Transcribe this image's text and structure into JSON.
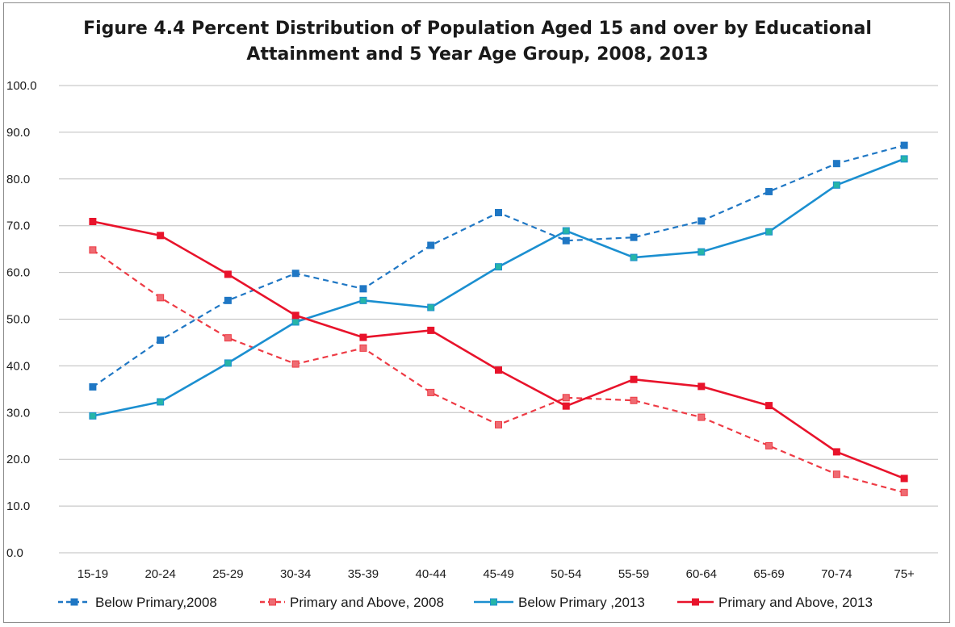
{
  "chart_data": {
    "type": "line",
    "title_line1": "Figure 4.4 Percent Distribution of Population Aged 15 and over by Educational",
    "title_line2": "Attainment and 5 Year Age Group, 2008, 2013",
    "xlabel": "",
    "ylabel": "",
    "ylim": [
      0,
      100
    ],
    "yticks": [
      "0.0",
      "10.0",
      "20.0",
      "30.0",
      "40.0",
      "50.0",
      "60.0",
      "70.0",
      "80.0",
      "90.0",
      "100.0"
    ],
    "categories": [
      "15-19",
      "20-24",
      "25-29",
      "30-34",
      "35-39",
      "40-44",
      "45-49",
      "50-54",
      "55-59",
      "60-64",
      "65-69",
      "70-74",
      "75+"
    ],
    "grid": true,
    "legend_position": "bottom",
    "series": [
      {
        "name": "Below Primary,2008",
        "color": "#1f77c4",
        "marker_color": "#1f77c4",
        "dash": true,
        "values": [
          35.5,
          45.5,
          54.0,
          59.8,
          56.5,
          65.8,
          72.8,
          66.8,
          67.5,
          71.0,
          77.3,
          83.3,
          87.2
        ]
      },
      {
        "name": "Primary and Above, 2008",
        "color": "#ee3b45",
        "marker_color": "#ee6b72",
        "dash": true,
        "values": [
          64.8,
          54.6,
          46.0,
          40.4,
          43.8,
          34.3,
          27.4,
          33.2,
          32.6,
          29.0,
          22.9,
          16.8,
          12.9
        ]
      },
      {
        "name": "Below Primary ,2013",
        "color": "#1b8fd0",
        "marker_color": "#26b5a8",
        "dash": false,
        "values": [
          29.3,
          32.3,
          40.6,
          49.4,
          54.0,
          52.5,
          61.2,
          68.9,
          63.2,
          64.4,
          68.7,
          78.7,
          84.3
        ]
      },
      {
        "name": "Primary and Above, 2013",
        "color": "#e8132b",
        "marker_color": "#e8132b",
        "dash": false,
        "values": [
          70.9,
          67.9,
          59.6,
          50.8,
          46.1,
          47.6,
          39.1,
          31.4,
          37.1,
          35.6,
          31.5,
          21.6,
          15.9
        ]
      }
    ]
  }
}
